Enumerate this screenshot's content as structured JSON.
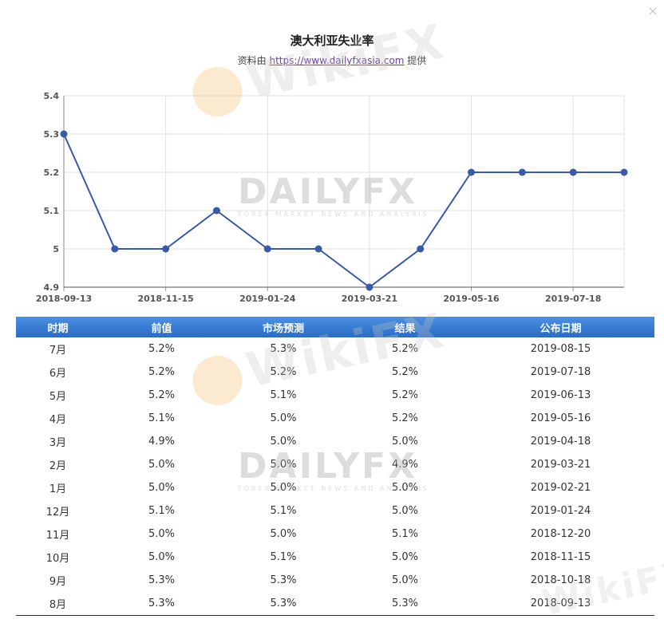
{
  "close_label": "×",
  "title": "澳大利亚失业率",
  "subtitle": {
    "prefix": "资料由 ",
    "link_text": "https://www.dailyfxasia.com",
    "suffix": " 提供"
  },
  "watermarks": {
    "wikifx": "WikiFX",
    "dailyfx_main": "DAILYFX",
    "dailyfx_sub": "FOREX MARKET NEWS AND ANALYSIS"
  },
  "colors": {
    "line": "#3a5aa6",
    "grid": "#e2e2e2",
    "header_top": "#4a90e2",
    "header_bottom": "#2a6cc6"
  },
  "chart_data": {
    "type": "line",
    "title": "澳大利亚失业率",
    "x": [
      "2018-09-13",
      "2018-10-18",
      "2018-11-15",
      "2018-12-20",
      "2019-01-24",
      "2019-02-21",
      "2019-03-21",
      "2019-04-18",
      "2019-05-16",
      "2019-06-13",
      "2019-07-18",
      "2019-08-15"
    ],
    "x_tick_labels": [
      "2018-09-13",
      "2018-11-15",
      "2019-01-24",
      "2019-03-21",
      "2019-05-16",
      "2019-07-18"
    ],
    "series": [
      {
        "values": [
          5.3,
          5.0,
          5.0,
          5.1,
          5.0,
          5.0,
          4.9,
          5.0,
          5.2,
          5.2,
          5.2,
          5.2
        ]
      }
    ],
    "y_ticks": [
      4.9,
      5,
      5.1,
      5.2,
      5.3,
      5.4
    ],
    "y_tick_labels": [
      "4.9",
      "5",
      "5.1",
      "5.2",
      "5.3",
      "5.4"
    ],
    "ylim": [
      4.9,
      5.4
    ],
    "grid": true,
    "legend": "none"
  },
  "table": {
    "headers": [
      "时期",
      "前值",
      "市场预测",
      "结果",
      "公布日期"
    ],
    "rows": [
      [
        "7月",
        "5.2%",
        "5.3%",
        "5.2%",
        "2019-08-15"
      ],
      [
        "6月",
        "5.2%",
        "5.2%",
        "5.2%",
        "2019-07-18"
      ],
      [
        "5月",
        "5.2%",
        "5.1%",
        "5.2%",
        "2019-06-13"
      ],
      [
        "4月",
        "5.1%",
        "5.0%",
        "5.2%",
        "2019-05-16"
      ],
      [
        "3月",
        "4.9%",
        "5.0%",
        "5.0%",
        "2019-04-18"
      ],
      [
        "2月",
        "5.0%",
        "5.0%",
        "4.9%",
        "2019-03-21"
      ],
      [
        "1月",
        "5.0%",
        "5.0%",
        "5.0%",
        "2019-02-21"
      ],
      [
        "12月",
        "5.1%",
        "5.1%",
        "5.0%",
        "2019-01-24"
      ],
      [
        "11月",
        "5.0%",
        "5.0%",
        "5.1%",
        "2018-12-20"
      ],
      [
        "10月",
        "5.0%",
        "5.1%",
        "5.0%",
        "2018-11-15"
      ],
      [
        "9月",
        "5.3%",
        "5.3%",
        "5.0%",
        "2018-10-18"
      ],
      [
        "8月",
        "5.3%",
        "5.3%",
        "5.3%",
        "2018-09-13"
      ]
    ]
  }
}
